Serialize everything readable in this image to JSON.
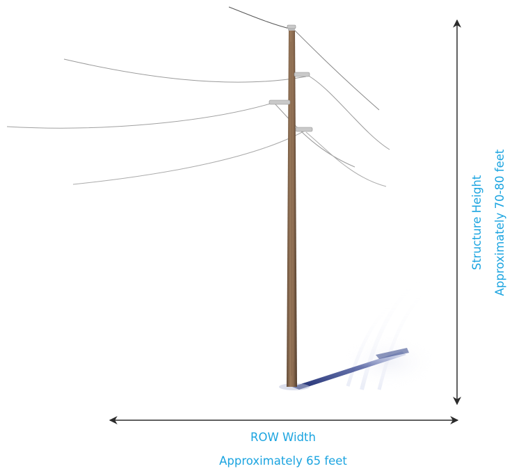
{
  "dimensions": {
    "row_width_label": "ROW Width",
    "row_width_value": "Approximately 65 feet",
    "structure_height_label": "Structure Height",
    "structure_height_value": "Approximately 70-80 feet"
  },
  "colors": {
    "label_text": "#1ba4e0",
    "arrow": "#2b2b2b",
    "pole": "#8a6a4f",
    "wire": "#6f6f6f",
    "shadow": "#1a2e7a"
  },
  "icons": {
    "pole": "wooden-utility-pole",
    "insulator": "insulator-icon",
    "arrow": "double-headed-arrow"
  }
}
